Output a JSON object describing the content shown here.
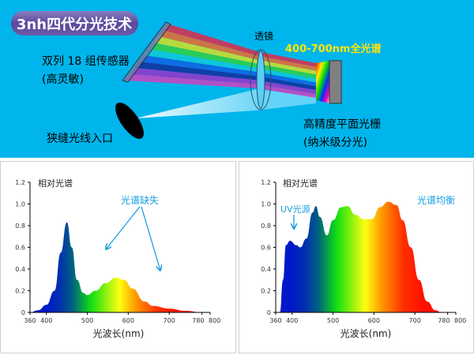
{
  "diagram": {
    "title": "3nh四代分光技术",
    "lens_label": "透镜",
    "spectrum_label": "400-700nm全光谱",
    "sensor_label": "双列 18 组传感器",
    "sensor_sublabel": "(高灵敏)",
    "slit_label": "狭缝光线入口",
    "grating_label": "高精度平面光栅",
    "grating_sublabel": "(纳米级分光)",
    "colors": {
      "background": "#00b5ec",
      "spectrum_label": "#ffe600",
      "title_pill": "#6a5aa8"
    }
  },
  "chart_data": [
    {
      "type": "area",
      "ylabel": "相对光谱",
      "xlabel": "光波长(nm)",
      "annotation": "光谱缺失",
      "annotation_color": "#1a9ee0",
      "xlim": [
        360,
        800
      ],
      "ylim": [
        0,
        1.2
      ],
      "xticks": [
        "360",
        "400",
        "500",
        "600",
        "700",
        "780",
        "800"
      ],
      "xtick_values": [
        360,
        400,
        500,
        600,
        700,
        780,
        800
      ],
      "yticks": [
        "0",
        "0.2",
        "0.4",
        "0.6",
        "0.8",
        "1.0",
        "1.2"
      ],
      "ytick_values": [
        0,
        0.2,
        0.4,
        0.6,
        0.8,
        1.0,
        1.2
      ],
      "x": [
        360,
        380,
        400,
        420,
        435,
        450,
        462,
        475,
        490,
        500,
        520,
        545,
        570,
        590,
        610,
        640,
        660,
        700,
        740,
        780
      ],
      "y": [
        0,
        0.02,
        0.07,
        0.2,
        0.55,
        0.83,
        0.6,
        0.3,
        0.18,
        0.16,
        0.2,
        0.27,
        0.32,
        0.3,
        0.22,
        0.1,
        0.06,
        0.035,
        0.015,
        0
      ]
    },
    {
      "type": "area",
      "ylabel": "相对光谱",
      "xlabel": "光波长(nm)",
      "annotation": "光谱均衡",
      "annotation2": "UV光源",
      "annotation_color": "#1a9ee0",
      "xlim": [
        360,
        800
      ],
      "ylim": [
        0,
        1.2
      ],
      "xticks": [
        "360",
        "400",
        "500",
        "600",
        "700",
        "780",
        "800"
      ],
      "xtick_values": [
        360,
        400,
        500,
        600,
        700,
        780,
        800
      ],
      "yticks": [
        "0",
        "0.2",
        "0.4",
        "0.6",
        "0.8",
        "1.0",
        "1.2"
      ],
      "ytick_values": [
        0,
        0.2,
        0.4,
        0.6,
        0.8,
        1.0,
        1.2
      ],
      "x": [
        370,
        378,
        385,
        395,
        410,
        420,
        435,
        450,
        458,
        468,
        485,
        500,
        520,
        535,
        555,
        575,
        595,
        615,
        635,
        655,
        670,
        690,
        710,
        730,
        750,
        765
      ],
      "y": [
        0,
        0.3,
        0.62,
        0.66,
        0.62,
        0.6,
        0.68,
        0.92,
        0.98,
        0.88,
        0.71,
        0.85,
        0.97,
        0.98,
        0.9,
        0.86,
        0.86,
        0.97,
        1.02,
        0.99,
        0.85,
        0.6,
        0.3,
        0.1,
        0.02,
        0
      ]
    }
  ]
}
